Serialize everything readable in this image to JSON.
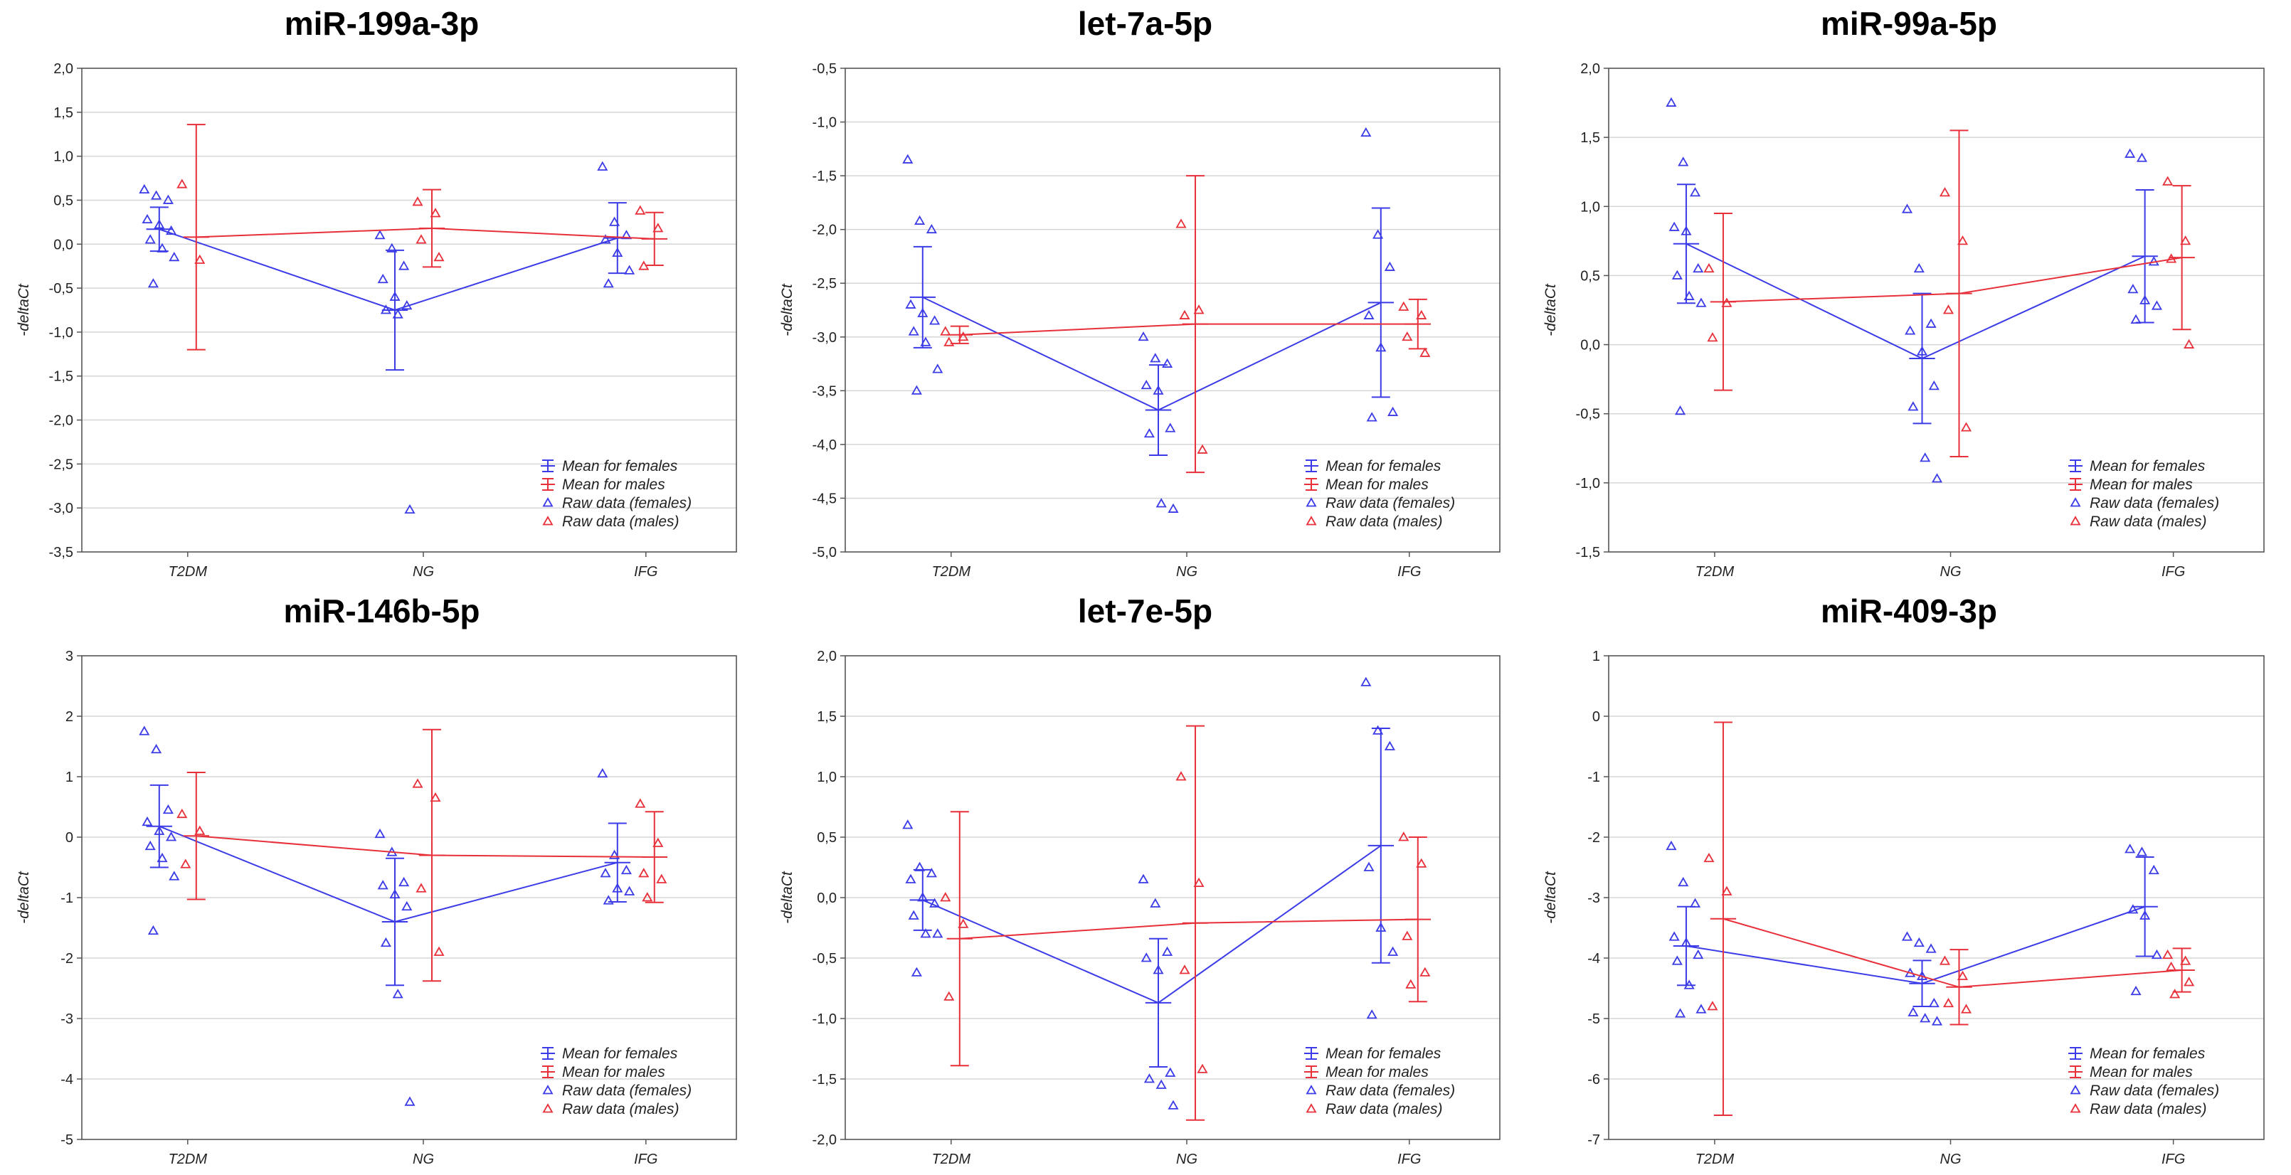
{
  "colors": {
    "females": "#3b3be8",
    "males": "#e8303a",
    "grid": "#d6d6d6",
    "frame": "#555555"
  },
  "legend": [
    "Mean for females",
    "Mean for males",
    "Raw data (females)",
    "Raw data (males)"
  ],
  "chart_data": [
    {
      "type": "scatter",
      "title": "miR-199a-3p",
      "ylabel": "-deltaCt",
      "categories": [
        "T2DM",
        "NG",
        "IFG"
      ],
      "ylim": [
        -3.5,
        2.0
      ],
      "yticks": [
        "2,0",
        "1,5",
        "1,0",
        "0,5",
        "0,0",
        "-0,5",
        "-1,0",
        "-1,5",
        "-2,0",
        "-2,5",
        "-3,0",
        "-3,5"
      ],
      "females": {
        "mean": [
          0.17,
          -0.75,
          0.07
        ],
        "err": [
          0.25,
          0.68,
          0.4
        ],
        "raw": [
          [
            0.62,
            0.55,
            0.5,
            0.28,
            0.22,
            0.15,
            0.05,
            -0.05,
            -0.15,
            -0.45
          ],
          [
            0.1,
            -0.05,
            -0.25,
            -0.4,
            -0.6,
            -0.7,
            -0.75,
            -0.8,
            -3.02
          ],
          [
            0.88,
            0.25,
            0.1,
            0.05,
            -0.1,
            -0.3,
            -0.45
          ]
        ]
      },
      "males": {
        "mean": [
          0.08,
          0.18,
          0.06
        ],
        "err": [
          1.28,
          0.44,
          0.3
        ],
        "raw": [
          [
            0.68,
            -0.18
          ],
          [
            0.48,
            0.35,
            0.05,
            -0.15
          ],
          [
            0.38,
            0.18,
            -0.25
          ]
        ]
      }
    },
    {
      "type": "scatter",
      "title": "let-7a-5p",
      "ylabel": "-deltaCt",
      "categories": [
        "T2DM",
        "NG",
        "IFG"
      ],
      "ylim": [
        -5.0,
        -0.5
      ],
      "yticks": [
        "-0,5",
        "-1,0",
        "-1,5",
        "-2,0",
        "-2,5",
        "-3,0",
        "-3,5",
        "-4,0",
        "-4,5",
        "-5,0"
      ],
      "females": {
        "mean": [
          -2.63,
          -3.68,
          -2.68
        ],
        "err": [
          0.47,
          0.42,
          0.88
        ],
        "raw": [
          [
            -1.35,
            -1.92,
            -2.0,
            -2.7,
            -2.78,
            -2.85,
            -2.95,
            -3.05,
            -3.3,
            -3.5
          ],
          [
            -3.0,
            -3.2,
            -3.25,
            -3.45,
            -3.5,
            -3.85,
            -3.9,
            -4.55,
            -4.6
          ],
          [
            -1.1,
            -2.05,
            -2.35,
            -2.8,
            -3.1,
            -3.7,
            -3.75
          ]
        ]
      },
      "males": {
        "mean": [
          -2.98,
          -2.88,
          -2.88
        ],
        "err": [
          0.08,
          1.38,
          0.23
        ],
        "raw": [
          [
            -2.95,
            -3.0,
            -3.05
          ],
          [
            -1.95,
            -2.75,
            -2.8,
            -4.05
          ],
          [
            -2.72,
            -2.8,
            -3.0,
            -3.15
          ]
        ]
      }
    },
    {
      "type": "scatter",
      "title": "miR-99a-5p",
      "ylabel": "-deltaCt",
      "categories": [
        "T2DM",
        "NG",
        "IFG"
      ],
      "ylim": [
        -1.5,
        2.0
      ],
      "yticks": [
        "2,0",
        "1,5",
        "1,0",
        "0,5",
        "0,0",
        "-0,5",
        "-1,0",
        "-1,5"
      ],
      "females": {
        "mean": [
          0.73,
          -0.1,
          0.64
        ],
        "err": [
          0.43,
          0.47,
          0.48
        ],
        "raw": [
          [
            1.75,
            1.32,
            1.1,
            0.85,
            0.82,
            0.55,
            0.5,
            0.35,
            0.3,
            -0.48
          ],
          [
            0.98,
            0.55,
            0.15,
            0.1,
            -0.05,
            -0.3,
            -0.45,
            -0.82,
            -0.97
          ],
          [
            1.38,
            1.35,
            0.6,
            0.4,
            0.32,
            0.28,
            0.18
          ]
        ]
      },
      "males": {
        "mean": [
          0.31,
          0.37,
          0.63
        ],
        "err": [
          0.64,
          1.18,
          0.52
        ],
        "raw": [
          [
            0.55,
            0.3,
            0.05
          ],
          [
            1.1,
            0.75,
            0.25,
            -0.6
          ],
          [
            1.18,
            0.75,
            0.62,
            0.0
          ]
        ]
      }
    },
    {
      "type": "scatter",
      "title": "miR-146b-5p",
      "ylabel": "-deltaCt",
      "categories": [
        "T2DM",
        "NG",
        "IFG"
      ],
      "ylim": [
        -5,
        3
      ],
      "yticks": [
        "3",
        "2",
        "1",
        "0",
        "-1",
        "-2",
        "-3",
        "-4",
        "-5"
      ],
      "females": {
        "mean": [
          0.18,
          -1.4,
          -0.42
        ],
        "err": [
          0.68,
          1.05,
          0.65
        ],
        "raw": [
          [
            1.75,
            1.45,
            0.45,
            0.25,
            0.1,
            0.0,
            -0.15,
            -0.35,
            -0.65,
            -1.55
          ],
          [
            0.05,
            -0.25,
            -0.75,
            -0.8,
            -0.95,
            -1.15,
            -1.75,
            -2.6,
            -4.38
          ],
          [
            1.05,
            -0.3,
            -0.55,
            -0.6,
            -0.85,
            -0.9,
            -1.05
          ]
        ]
      },
      "males": {
        "mean": [
          0.02,
          -0.3,
          -0.33
        ],
        "err": [
          1.05,
          2.08,
          0.75
        ],
        "raw": [
          [
            0.38,
            0.1,
            -0.45
          ],
          [
            0.88,
            0.65,
            -0.85,
            -1.9
          ],
          [
            0.55,
            -0.1,
            -0.6,
            -0.7,
            -1.0
          ]
        ]
      }
    },
    {
      "type": "scatter",
      "title": "let-7e-5p",
      "ylabel": "-deltaCt",
      "categories": [
        "T2DM",
        "NG",
        "IFG"
      ],
      "ylim": [
        -2.0,
        2.0
      ],
      "yticks": [
        "2,0",
        "1,5",
        "1,0",
        "0,5",
        "0,0",
        "-0,5",
        "-1,0",
        "-1,5",
        "-2,0"
      ],
      "females": {
        "mean": [
          -0.02,
          -0.87,
          0.43
        ],
        "err": [
          0.25,
          0.53,
          0.97
        ],
        "raw": [
          [
            0.6,
            0.25,
            0.2,
            0.15,
            0.0,
            -0.05,
            -0.15,
            -0.3,
            -0.3,
            -0.62
          ],
          [
            0.15,
            -0.05,
            -0.45,
            -0.5,
            -0.6,
            -1.45,
            -1.5,
            -1.55,
            -1.72
          ],
          [
            1.78,
            1.38,
            1.25,
            0.25,
            -0.25,
            -0.45,
            -0.97
          ]
        ]
      },
      "males": {
        "mean": [
          -0.34,
          -0.21,
          -0.18
        ],
        "err": [
          1.05,
          1.63,
          0.68
        ],
        "raw": [
          [
            0.0,
            -0.22,
            -0.82
          ],
          [
            1.0,
            0.12,
            -0.6,
            -1.42
          ],
          [
            0.5,
            0.28,
            -0.32,
            -0.62,
            -0.72
          ]
        ]
      }
    },
    {
      "type": "scatter",
      "title": "miR-409-3p",
      "ylabel": "-deltaCt",
      "categories": [
        "T2DM",
        "NG",
        "IFG"
      ],
      "ylim": [
        -7,
        1
      ],
      "yticks": [
        "1",
        "0",
        "-1",
        "-2",
        "-3",
        "-4",
        "-5",
        "-6",
        "-7"
      ],
      "females": {
        "mean": [
          -3.8,
          -4.42,
          -3.15
        ],
        "err": [
          0.65,
          0.38,
          0.82
        ],
        "raw": [
          [
            -2.15,
            -2.75,
            -3.1,
            -3.65,
            -3.75,
            -3.95,
            -4.05,
            -4.45,
            -4.85,
            -4.92
          ],
          [
            -3.65,
            -3.75,
            -3.85,
            -4.25,
            -4.3,
            -4.75,
            -4.9,
            -5.0,
            -5.05
          ],
          [
            -2.2,
            -2.25,
            -2.55,
            -3.2,
            -3.3,
            -3.95,
            -4.55
          ]
        ]
      },
      "males": {
        "mean": [
          -3.35,
          -4.48,
          -4.2
        ],
        "err": [
          3.25,
          0.62,
          0.36
        ],
        "raw": [
          [
            -2.35,
            -2.9,
            -4.8
          ],
          [
            -4.05,
            -4.3,
            -4.75,
            -4.85
          ],
          [
            -3.95,
            -4.05,
            -4.15,
            -4.4,
            -4.6
          ]
        ]
      }
    }
  ]
}
